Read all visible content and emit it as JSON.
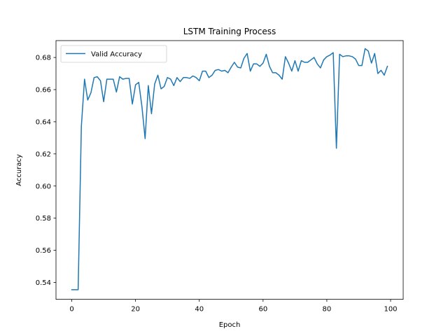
{
  "chart_data": {
    "type": "line",
    "title": "LSTM Training Process",
    "xlabel": "Epoch",
    "ylabel": "Accuracy",
    "xlim": [
      -4.95,
      103.95
    ],
    "ylim": [
      0.5295,
      0.6905
    ],
    "xticks": [
      0,
      20,
      40,
      60,
      80,
      100
    ],
    "yticks": [
      0.54,
      0.56,
      0.58,
      0.6,
      0.62,
      0.64,
      0.66,
      0.68
    ],
    "ytick_labels": [
      "0.54",
      "0.56",
      "0.58",
      "0.60",
      "0.62",
      "0.64",
      "0.66",
      "0.68"
    ],
    "grid": false,
    "legend_position": "upper-left",
    "series": [
      {
        "name": "Valid Accuracy",
        "color": "#1f77b4",
        "x": [
          0,
          1,
          2,
          3,
          4,
          5,
          6,
          7,
          8,
          9,
          10,
          11,
          12,
          13,
          14,
          15,
          16,
          17,
          18,
          19,
          20,
          21,
          22,
          23,
          24,
          25,
          26,
          27,
          28,
          29,
          30,
          31,
          32,
          33,
          34,
          35,
          36,
          37,
          38,
          39,
          40,
          41,
          42,
          43,
          44,
          45,
          46,
          47,
          48,
          49,
          50,
          51,
          52,
          53,
          54,
          55,
          56,
          57,
          58,
          59,
          60,
          61,
          62,
          63,
          64,
          65,
          66,
          67,
          68,
          69,
          70,
          71,
          72,
          73,
          74,
          75,
          76,
          77,
          78,
          79,
          80,
          81,
          82,
          83,
          84,
          85,
          86,
          87,
          88,
          89,
          90,
          91,
          92,
          93,
          94,
          95,
          96,
          97,
          98,
          99
        ],
        "y": [
          0.5355,
          0.5355,
          0.5355,
          0.637,
          0.6665,
          0.6535,
          0.658,
          0.6675,
          0.668,
          0.6655,
          0.6525,
          0.6665,
          0.6665,
          0.6665,
          0.6585,
          0.668,
          0.6665,
          0.667,
          0.667,
          0.651,
          0.663,
          0.6645,
          0.6495,
          0.6295,
          0.6625,
          0.645,
          0.6635,
          0.669,
          0.6605,
          0.662,
          0.6675,
          0.6665,
          0.6625,
          0.6675,
          0.665,
          0.6675,
          0.6675,
          0.667,
          0.6685,
          0.6675,
          0.6655,
          0.6715,
          0.6715,
          0.6675,
          0.669,
          0.672,
          0.6725,
          0.6715,
          0.672,
          0.6705,
          0.674,
          0.677,
          0.674,
          0.6735,
          0.6795,
          0.6825,
          0.6715,
          0.676,
          0.676,
          0.6745,
          0.6765,
          0.682,
          0.6745,
          0.6705,
          0.6705,
          0.669,
          0.6665,
          0.6805,
          0.6765,
          0.6715,
          0.678,
          0.6715,
          0.678,
          0.677,
          0.677,
          0.6785,
          0.68,
          0.676,
          0.6735,
          0.6785,
          0.6805,
          0.6815,
          0.683,
          0.6235,
          0.682,
          0.6805,
          0.681,
          0.681,
          0.6805,
          0.679,
          0.675,
          0.675,
          0.6855,
          0.684,
          0.6765,
          0.6825,
          0.67,
          0.672,
          0.669,
          0.6745
        ]
      }
    ]
  }
}
